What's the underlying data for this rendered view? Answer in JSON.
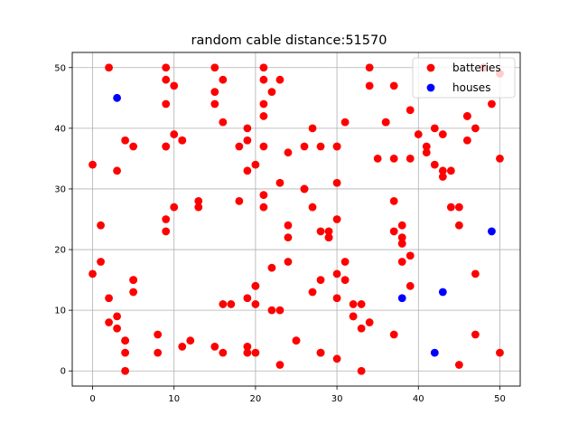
{
  "chart_data": {
    "type": "scatter",
    "title": "random cable distance:51570",
    "xlabel": "",
    "ylabel": "",
    "xlim": [
      -2.5,
      52.5
    ],
    "ylim": [
      -2.5,
      52.5
    ],
    "xticks": [
      0,
      10,
      20,
      30,
      40,
      50
    ],
    "yticks": [
      0,
      10,
      20,
      30,
      40,
      50
    ],
    "grid": true,
    "legend_position": "top-right",
    "series": [
      {
        "name": "batteries",
        "color": "#ff0000",
        "x": [
          2,
          9,
          15,
          21,
          34,
          48,
          50,
          9,
          16,
          21,
          23,
          10,
          9,
          21,
          22,
          15,
          39,
          49,
          21,
          15,
          27,
          31,
          36,
          46,
          9,
          10,
          16,
          11,
          18,
          19,
          26,
          28,
          30,
          34,
          35,
          37,
          37,
          45,
          46,
          4,
          5,
          3,
          9,
          20,
          19,
          24,
          0,
          37,
          38,
          43,
          44,
          18,
          13,
          13,
          23,
          28,
          30,
          10,
          21,
          27,
          32,
          9,
          1,
          19,
          32,
          11,
          21,
          26,
          20,
          3,
          5,
          17,
          16,
          20,
          22,
          20,
          22,
          21,
          24,
          24,
          25,
          26,
          29,
          28,
          30,
          30,
          23,
          31,
          31,
          29,
          37,
          38,
          39,
          40,
          41,
          42,
          43,
          44,
          46,
          47,
          50,
          36,
          38,
          38,
          39,
          42,
          43,
          45,
          1,
          0,
          5,
          5,
          2,
          19,
          4,
          9,
          2,
          3,
          8,
          12,
          11,
          19,
          19,
          24,
          27,
          29,
          28,
          30,
          30,
          32,
          33,
          33,
          34,
          37,
          38,
          39,
          41,
          47,
          48,
          4,
          4,
          4,
          8,
          15,
          16,
          20,
          23,
          25,
          28,
          30,
          33,
          45,
          47,
          50
        ],
        "y": [
          50,
          50,
          50,
          50,
          50,
          50,
          49,
          48,
          48,
          48,
          48,
          47,
          44,
          44,
          46,
          44,
          43,
          44,
          42,
          46,
          40,
          41,
          41,
          42,
          37,
          39,
          41,
          38,
          37,
          38,
          37,
          37,
          37,
          47,
          35,
          35,
          47,
          24,
          38,
          38,
          37,
          33,
          37,
          34,
          33,
          36,
          34,
          28,
          24,
          33,
          27,
          28,
          27,
          28,
          10,
          15,
          37,
          27,
          27,
          27,
          9,
          23,
          24,
          40,
          11,
          38,
          29,
          30,
          11,
          9,
          15,
          11,
          11,
          14,
          10,
          14,
          17,
          37,
          24,
          22,
          5,
          30,
          22,
          23,
          25,
          31,
          31,
          15,
          18,
          23,
          23,
          21,
          19,
          39,
          36,
          40,
          32,
          33,
          42,
          16,
          35,
          41,
          22,
          21,
          35,
          34,
          39,
          27,
          18,
          16,
          13,
          15,
          12,
          12,
          5,
          25,
          8,
          7,
          6,
          5,
          4,
          3,
          4,
          18,
          13,
          22,
          3,
          16,
          12,
          9,
          11,
          7,
          8,
          6,
          18,
          14,
          37,
          40,
          50,
          0,
          3,
          5,
          3,
          4,
          3,
          3,
          1,
          5,
          3,
          2,
          0,
          1,
          6,
          3
        ]
      },
      {
        "name": "houses",
        "color": "#0000ff",
        "x": [
          3,
          38,
          43,
          49,
          42
        ],
        "y": [
          45,
          12,
          13,
          23,
          3
        ]
      }
    ]
  }
}
